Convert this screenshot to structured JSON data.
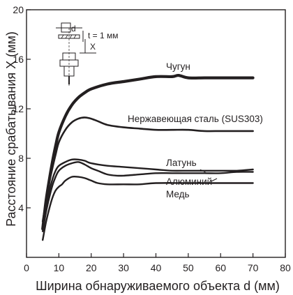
{
  "chart_data": {
    "type": "line",
    "title": "",
    "xlabel": "Ширина обнаруживаемого объекта d (мм)",
    "ylabel": "Расстояние срабатывания X (мм)",
    "xlim": [
      0,
      80
    ],
    "ylim": [
      0,
      20
    ],
    "x_ticks": [
      {
        "value": 0,
        "label": "0"
      },
      {
        "value": 10,
        "label": "10"
      },
      {
        "value": 20,
        "label": "20"
      },
      {
        "value": 30,
        "label": "30"
      },
      {
        "value": 40,
        "label": "40"
      },
      {
        "value": 50,
        "label": "50"
      },
      {
        "value": 60,
        "label": "60"
      },
      {
        "value": 70,
        "label": "70"
      },
      {
        "value": 80,
        "label": "80"
      }
    ],
    "y_ticks": [
      {
        "value": 4,
        "label": "4"
      },
      {
        "value": 8,
        "label": "8"
      },
      {
        "value": 12,
        "label": "12"
      },
      {
        "value": 16,
        "label": "16"
      },
      {
        "value": 20,
        "label": "20"
      }
    ],
    "grid": false,
    "series": [
      {
        "name": "Чугун",
        "x": [
          5,
          6,
          7,
          8,
          9,
          10,
          12,
          14,
          16,
          18,
          20,
          25,
          30,
          35,
          40,
          45,
          47,
          50,
          55,
          60,
          65,
          70
        ],
        "y": [
          2.3,
          4.5,
          6.2,
          7.7,
          9.0,
          10.1,
          11.4,
          12.3,
          12.9,
          13.3,
          13.6,
          14.0,
          14.2,
          14.4,
          14.6,
          14.6,
          14.7,
          14.5,
          14.5,
          14.5,
          14.5,
          14.5
        ]
      },
      {
        "name": "Нержавеющая сталь (SUS303)",
        "x": [
          5,
          6,
          7,
          8,
          9,
          10,
          12,
          14,
          16,
          18,
          20,
          22,
          25,
          30,
          35,
          40,
          45,
          50,
          55,
          60,
          65,
          70
        ],
        "y": [
          2.9,
          4.5,
          6.0,
          7.2,
          8.3,
          9.3,
          10.3,
          10.9,
          11.2,
          11.3,
          11.2,
          11.0,
          10.7,
          10.5,
          10.4,
          10.3,
          10.3,
          10.3,
          10.2,
          10.2,
          10.2,
          10.2
        ]
      },
      {
        "name": "Латунь",
        "x": [
          5,
          6,
          7,
          8,
          9,
          10,
          12,
          14,
          16,
          18,
          20,
          25,
          30,
          35,
          40,
          45,
          50,
          55,
          60,
          65,
          70
        ],
        "y": [
          2.4,
          4.0,
          5.3,
          6.3,
          7.0,
          7.4,
          7.7,
          7.9,
          7.9,
          7.8,
          7.6,
          7.4,
          7.3,
          7.2,
          7.1,
          7.0,
          7.0,
          7.0,
          7.0,
          7.0,
          7.1
        ]
      },
      {
        "name": "Алюминий",
        "x": [
          5,
          6,
          7,
          8,
          9,
          10,
          12,
          14,
          16,
          18,
          20,
          22,
          25,
          28,
          30,
          35,
          40,
          45,
          50,
          55,
          60,
          65,
          70
        ],
        "y": [
          2.1,
          3.6,
          4.8,
          5.8,
          6.5,
          7.0,
          7.4,
          7.6,
          7.7,
          7.5,
          7.2,
          7.0,
          6.7,
          6.6,
          6.6,
          6.7,
          6.8,
          6.8,
          6.8,
          6.8,
          6.8,
          6.9,
          6.9
        ]
      },
      {
        "name": "Медь",
        "x": [
          5,
          6,
          7,
          8,
          9,
          10,
          11,
          12,
          14,
          16,
          18,
          20,
          22,
          25,
          30,
          35,
          40,
          50,
          60,
          70
        ],
        "y": [
          1.4,
          2.8,
          3.9,
          4.8,
          5.4,
          5.7,
          5.9,
          6.2,
          6.5,
          6.5,
          6.4,
          6.2,
          6.0,
          5.9,
          5.9,
          5.9,
          6.0,
          6.0,
          6.0,
          6.0
        ]
      }
    ],
    "annotations": {
      "inset_side_label": "d",
      "inset_thickness": "t = 1 мм",
      "inset_distance": "X"
    }
  }
}
